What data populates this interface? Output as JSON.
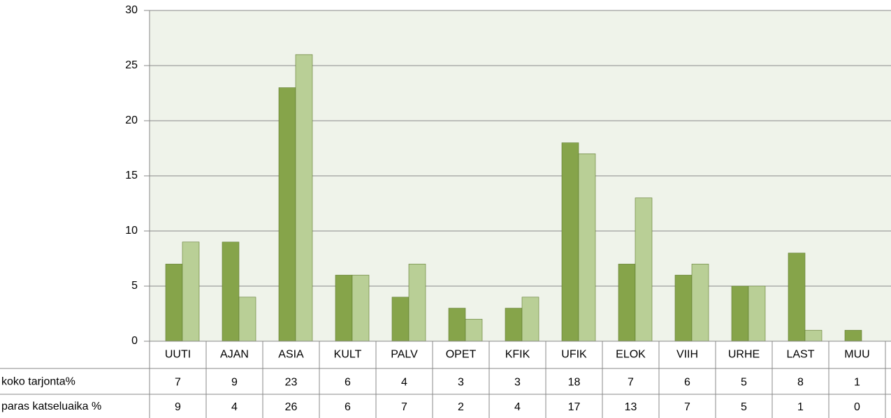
{
  "chart_data": {
    "type": "bar",
    "categories": [
      "UUTI",
      "AJAN",
      "ASIA",
      "KULT",
      "PALV",
      "OPET",
      "KFIK",
      "UFIK",
      "ELOK",
      "VIIH",
      "URHE",
      "LAST",
      "MUU"
    ],
    "series": [
      {
        "name": "koko tarjonta%",
        "color": "#86a44a",
        "values": [
          7,
          9,
          23,
          6,
          4,
          3,
          3,
          18,
          7,
          6,
          5,
          8,
          1
        ]
      },
      {
        "name": "paras katseluaika %",
        "color": "#b9cf96",
        "values": [
          9,
          4,
          26,
          6,
          7,
          2,
          4,
          17,
          13,
          7,
          5,
          1,
          0
        ]
      }
    ],
    "ylim": [
      0,
      30
    ],
    "yticks": [
      0,
      5,
      10,
      15,
      20,
      25,
      30
    ],
    "grid": true
  }
}
